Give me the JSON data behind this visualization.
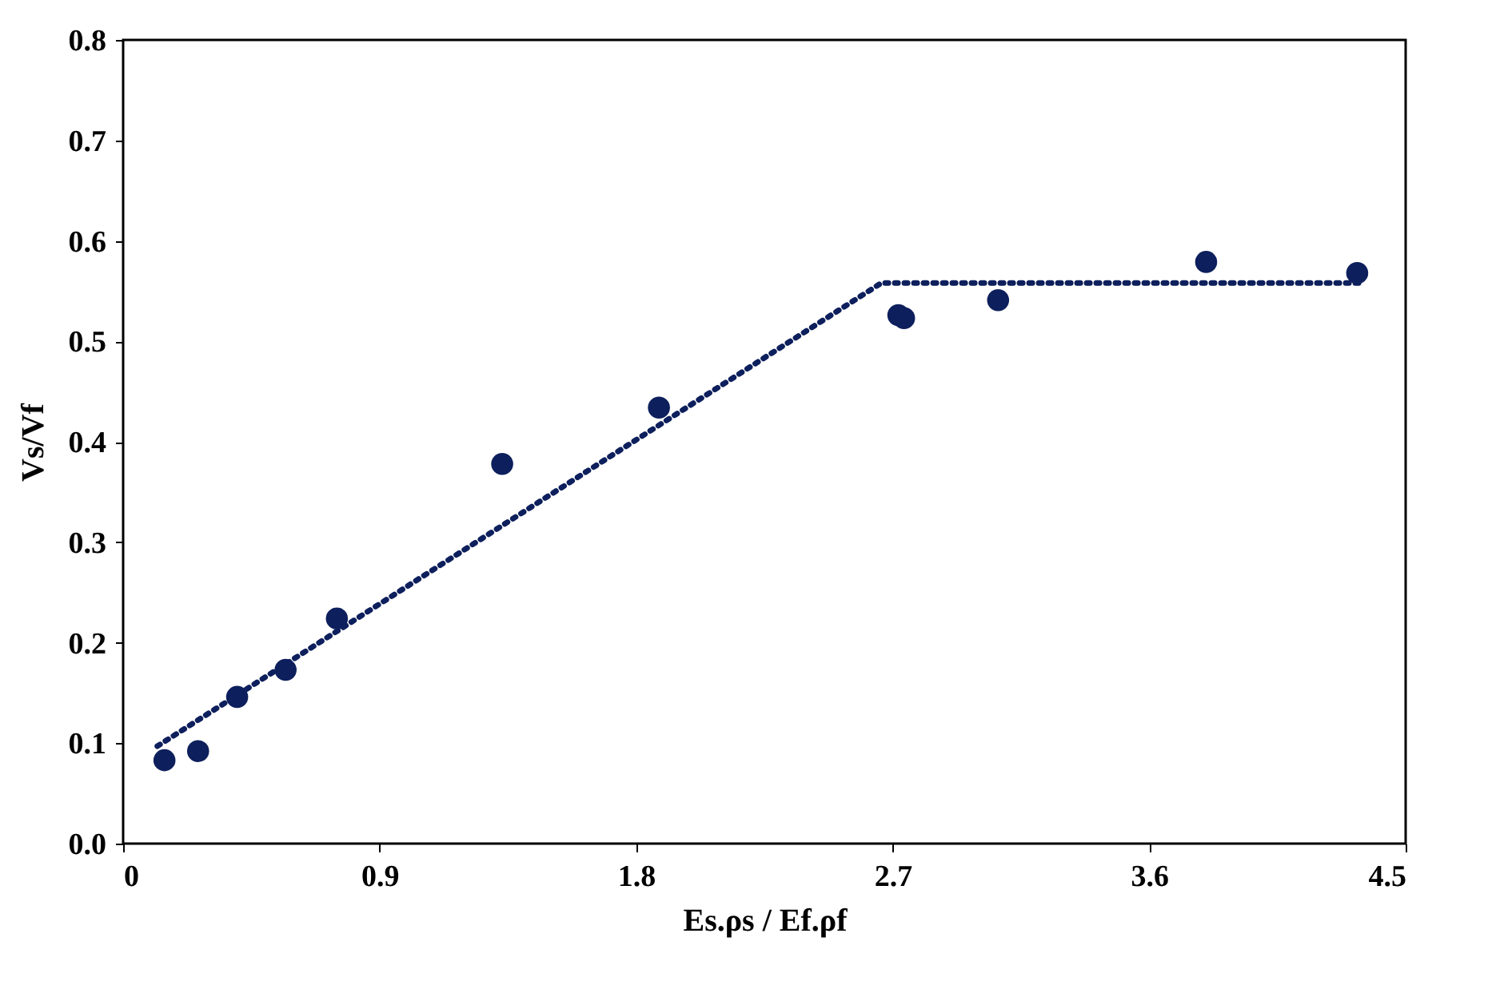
{
  "chart_data": {
    "type": "scatter",
    "xlabel": "Es.ρs / Ef.ρf",
    "ylabel": "Vs/Vf",
    "xlim": [
      0,
      4.5
    ],
    "xticks": [
      0,
      0.9,
      1.8,
      2.7,
      3.6,
      4.5
    ],
    "ylim": [
      0,
      0.8
    ],
    "yticks": [
      {
        "value": 0,
        "label": "0.0"
      },
      0.1,
      0.2,
      0.3,
      0.4,
      0.5,
      0.6,
      0.7,
      0.8
    ],
    "grid": false,
    "marker": "circle",
    "series": [
      {
        "color": "#0d1f5c",
        "x": [
          0.145,
          0.263,
          0.4,
          0.57,
          0.75,
          1.33,
          1.88,
          2.72,
          2.74,
          3.07,
          3.8,
          4.33
        ],
        "values": [
          0.083,
          0.092,
          0.146,
          0.173,
          0.224,
          0.378,
          0.434,
          0.526,
          0.523,
          0.541,
          0.579,
          0.568
        ]
      },
      {
        "type": "line",
        "color": "#0d1f5c",
        "line_style": "dotted",
        "marker": "none",
        "x": [
          0.12,
          2.66,
          4.35
        ],
        "values": [
          0.097,
          0.558,
          0.558
        ]
      }
    ]
  }
}
